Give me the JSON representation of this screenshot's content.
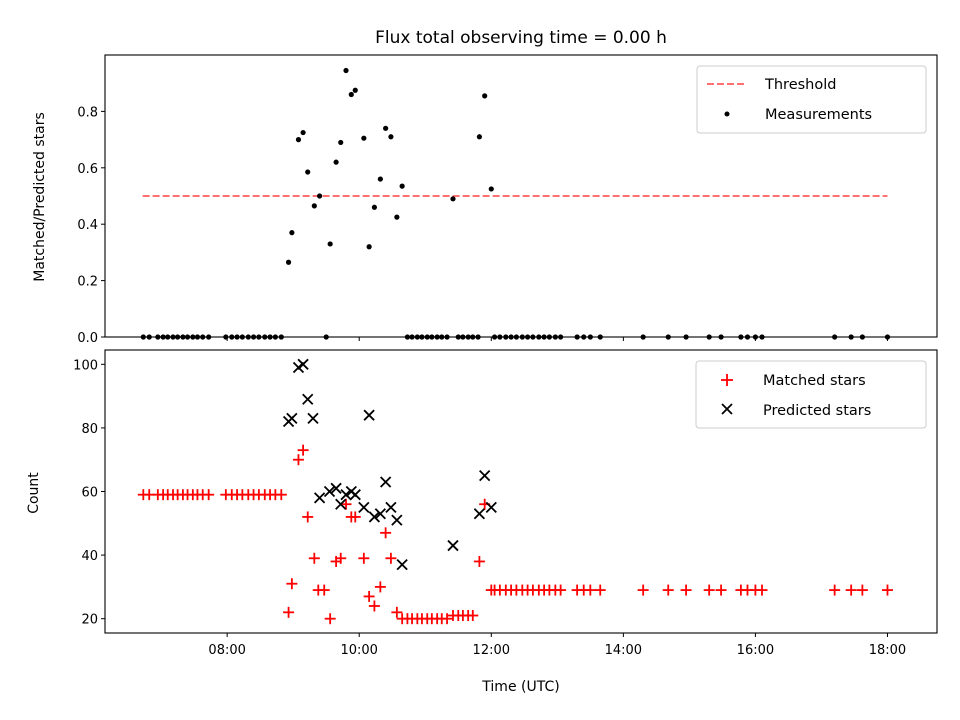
{
  "chart_data": [
    {
      "type": "scatter",
      "title": "Flux total observing time = 0.00 h",
      "xlabel": "",
      "ylabel": "Matched/Predicted stars",
      "xlim": [
        6.15,
        18.75
      ],
      "ylim": [
        0,
        1.0
      ],
      "yticks": [
        0.0,
        0.2,
        0.4,
        0.6,
        0.8
      ],
      "ytick_labels": [
        "0.0",
        "0.2",
        "0.4",
        "0.6",
        "0.8"
      ],
      "xticks": [
        8,
        10,
        12,
        14,
        16,
        18
      ],
      "show_xtick_labels": false,
      "grid": false,
      "legend_placement": "top-right",
      "threshold": {
        "name": "Threshold",
        "value": 0.5,
        "x_range": [
          6.72,
          18.0
        ],
        "color": "#ff7070",
        "style": "dashed"
      },
      "series": [
        {
          "name": "Measurements",
          "marker": "dot",
          "color": "#000000",
          "points": [
            [
              6.73,
              0
            ],
            [
              6.82,
              0
            ],
            [
              6.95,
              0
            ],
            [
              7.03,
              0
            ],
            [
              7.1,
              0
            ],
            [
              7.18,
              0
            ],
            [
              7.25,
              0
            ],
            [
              7.33,
              0
            ],
            [
              7.4,
              0
            ],
            [
              7.48,
              0
            ],
            [
              7.55,
              0
            ],
            [
              7.63,
              0
            ],
            [
              7.72,
              0
            ],
            [
              7.98,
              0
            ],
            [
              8.07,
              0
            ],
            [
              8.15,
              0
            ],
            [
              8.23,
              0
            ],
            [
              8.32,
              0
            ],
            [
              8.4,
              0
            ],
            [
              8.48,
              0
            ],
            [
              8.57,
              0
            ],
            [
              8.65,
              0
            ],
            [
              8.73,
              0
            ],
            [
              8.82,
              0
            ],
            [
              8.93,
              0.265
            ],
            [
              8.98,
              0.37
            ],
            [
              9.08,
              0.7
            ],
            [
              9.15,
              0.725
            ],
            [
              9.22,
              0.585
            ],
            [
              9.32,
              0.465
            ],
            [
              9.4,
              0.5
            ],
            [
              9.5,
              0.0
            ],
            [
              9.56,
              0.33
            ],
            [
              9.65,
              0.62
            ],
            [
              9.72,
              0.69
            ],
            [
              9.8,
              0.945
            ],
            [
              9.88,
              0.86
            ],
            [
              9.94,
              0.875
            ],
            [
              10.07,
              0.705
            ],
            [
              10.15,
              0.32
            ],
            [
              10.23,
              0.46
            ],
            [
              10.32,
              0.56
            ],
            [
              10.4,
              0.74
            ],
            [
              10.48,
              0.71
            ],
            [
              10.57,
              0.425
            ],
            [
              10.65,
              0.535
            ],
            [
              10.73,
              0
            ],
            [
              10.8,
              0
            ],
            [
              10.88,
              0
            ],
            [
              10.95,
              0
            ],
            [
              11.03,
              0
            ],
            [
              11.1,
              0
            ],
            [
              11.18,
              0
            ],
            [
              11.25,
              0
            ],
            [
              11.33,
              0
            ],
            [
              11.42,
              0.49
            ],
            [
              11.5,
              0
            ],
            [
              11.57,
              0
            ],
            [
              11.65,
              0
            ],
            [
              11.72,
              0
            ],
            [
              11.8,
              0
            ],
            [
              11.82,
              0.71
            ],
            [
              11.9,
              0.855
            ],
            [
              12.0,
              0.525
            ],
            [
              12.05,
              0
            ],
            [
              12.13,
              0
            ],
            [
              12.22,
              0
            ],
            [
              12.3,
              0
            ],
            [
              12.38,
              0
            ],
            [
              12.47,
              0
            ],
            [
              12.55,
              0
            ],
            [
              12.63,
              0
            ],
            [
              12.72,
              0
            ],
            [
              12.8,
              0
            ],
            [
              12.88,
              0
            ],
            [
              12.97,
              0
            ],
            [
              13.05,
              0
            ],
            [
              13.3,
              0
            ],
            [
              13.4,
              0
            ],
            [
              13.5,
              0
            ],
            [
              13.65,
              0
            ],
            [
              14.3,
              0
            ],
            [
              14.68,
              0
            ],
            [
              14.95,
              0
            ],
            [
              15.3,
              0
            ],
            [
              15.48,
              0
            ],
            [
              15.78,
              0
            ],
            [
              15.88,
              0
            ],
            [
              16.0,
              0
            ],
            [
              16.1,
              0
            ],
            [
              17.2,
              0
            ],
            [
              17.45,
              0
            ],
            [
              17.62,
              0
            ],
            [
              18.0,
              0
            ]
          ]
        }
      ]
    },
    {
      "type": "scatter",
      "title": "",
      "xlabel": "Time (UTC)",
      "ylabel": "Count",
      "xlim": [
        6.15,
        18.75
      ],
      "ylim": [
        15.5,
        104.5
      ],
      "yticks": [
        20,
        40,
        60,
        80,
        100
      ],
      "ytick_labels": [
        "20",
        "40",
        "60",
        "80",
        "100"
      ],
      "xticks": [
        8,
        10,
        12,
        14,
        16,
        18
      ],
      "xtick_labels": [
        "08:00",
        "10:00",
        "12:00",
        "14:00",
        "16:00",
        "18:00"
      ],
      "grid": false,
      "legend_placement": "top-right",
      "series": [
        {
          "name": "Matched stars",
          "marker": "plus",
          "color": "#ff0000",
          "points": [
            [
              6.73,
              59
            ],
            [
              6.82,
              59
            ],
            [
              6.95,
              59
            ],
            [
              7.03,
              59
            ],
            [
              7.1,
              59
            ],
            [
              7.18,
              59
            ],
            [
              7.25,
              59
            ],
            [
              7.33,
              59
            ],
            [
              7.4,
              59
            ],
            [
              7.48,
              59
            ],
            [
              7.55,
              59
            ],
            [
              7.63,
              59
            ],
            [
              7.72,
              59
            ],
            [
              7.98,
              59
            ],
            [
              8.07,
              59
            ],
            [
              8.15,
              59
            ],
            [
              8.23,
              59
            ],
            [
              8.32,
              59
            ],
            [
              8.4,
              59
            ],
            [
              8.48,
              59
            ],
            [
              8.57,
              59
            ],
            [
              8.65,
              59
            ],
            [
              8.73,
              59
            ],
            [
              8.82,
              59
            ],
            [
              8.93,
              22
            ],
            [
              8.98,
              31
            ],
            [
              9.08,
              70
            ],
            [
              9.15,
              73
            ],
            [
              9.22,
              52
            ],
            [
              9.32,
              39
            ],
            [
              9.38,
              29
            ],
            [
              9.47,
              29
            ],
            [
              9.56,
              20
            ],
            [
              9.65,
              38
            ],
            [
              9.72,
              39
            ],
            [
              9.8,
              56
            ],
            [
              9.88,
              52
            ],
            [
              9.94,
              52
            ],
            [
              10.07,
              39
            ],
            [
              10.15,
              27
            ],
            [
              10.23,
              24
            ],
            [
              10.32,
              30
            ],
            [
              10.4,
              47
            ],
            [
              10.48,
              39
            ],
            [
              10.57,
              22
            ],
            [
              10.65,
              20
            ],
            [
              10.73,
              20
            ],
            [
              10.8,
              20
            ],
            [
              10.88,
              20
            ],
            [
              10.95,
              20
            ],
            [
              11.03,
              20
            ],
            [
              11.1,
              20
            ],
            [
              11.18,
              20
            ],
            [
              11.25,
              20
            ],
            [
              11.33,
              20
            ],
            [
              11.42,
              21
            ],
            [
              11.5,
              21
            ],
            [
              11.57,
              21
            ],
            [
              11.65,
              21
            ],
            [
              11.72,
              21
            ],
            [
              11.82,
              38
            ],
            [
              11.9,
              56
            ],
            [
              12.0,
              29
            ],
            [
              12.05,
              29
            ],
            [
              12.13,
              29
            ],
            [
              12.22,
              29
            ],
            [
              12.3,
              29
            ],
            [
              12.38,
              29
            ],
            [
              12.47,
              29
            ],
            [
              12.55,
              29
            ],
            [
              12.63,
              29
            ],
            [
              12.72,
              29
            ],
            [
              12.8,
              29
            ],
            [
              12.88,
              29
            ],
            [
              12.97,
              29
            ],
            [
              13.05,
              29
            ],
            [
              13.3,
              29
            ],
            [
              13.4,
              29
            ],
            [
              13.5,
              29
            ],
            [
              13.65,
              29
            ],
            [
              14.3,
              29
            ],
            [
              14.68,
              29
            ],
            [
              14.95,
              29
            ],
            [
              15.3,
              29
            ],
            [
              15.48,
              29
            ],
            [
              15.78,
              29
            ],
            [
              15.88,
              29
            ],
            [
              16.0,
              29
            ],
            [
              16.1,
              29
            ],
            [
              17.2,
              29
            ],
            [
              17.45,
              29
            ],
            [
              17.62,
              29
            ],
            [
              18.0,
              29
            ]
          ]
        },
        {
          "name": "Predicted stars",
          "marker": "x",
          "color": "#000000",
          "points": [
            [
              8.93,
              82
            ],
            [
              8.98,
              83
            ],
            [
              9.08,
              99
            ],
            [
              9.15,
              100
            ],
            [
              9.22,
              89
            ],
            [
              9.3,
              83
            ],
            [
              9.4,
              58
            ],
            [
              9.55,
              60
            ],
            [
              9.65,
              61
            ],
            [
              9.72,
              56
            ],
            [
              9.8,
              59
            ],
            [
              9.88,
              60
            ],
            [
              9.94,
              59
            ],
            [
              10.07,
              55
            ],
            [
              10.15,
              84
            ],
            [
              10.23,
              52
            ],
            [
              10.32,
              53
            ],
            [
              10.4,
              63
            ],
            [
              10.48,
              55
            ],
            [
              10.57,
              51
            ],
            [
              10.65,
              37
            ],
            [
              11.42,
              43
            ],
            [
              11.82,
              53
            ],
            [
              11.9,
              65
            ],
            [
              12.0,
              55
            ]
          ]
        }
      ]
    }
  ]
}
